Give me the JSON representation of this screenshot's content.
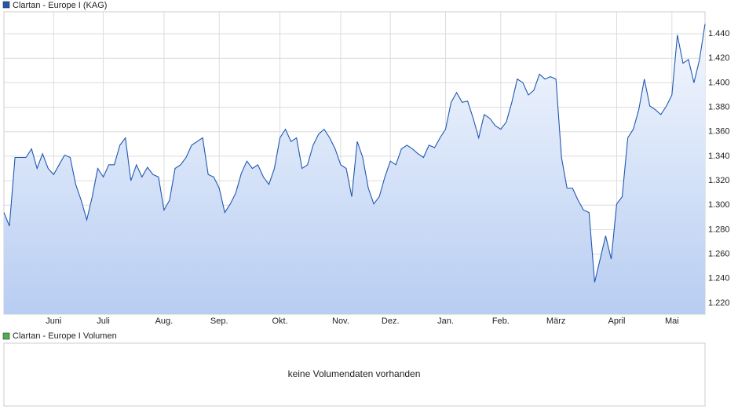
{
  "chart_data": [
    {
      "type": "line",
      "series": [
        {
          "name": "Clartan - Europe I (KAG)",
          "color": "#1f58b0",
          "values": [
            1.294,
            1.283,
            1.339,
            1.339,
            1.339,
            1.346,
            1.33,
            1.342,
            1.33,
            1.325,
            1.333,
            1.341,
            1.339,
            1.317,
            1.304,
            1.288,
            1.307,
            1.33,
            1.323,
            1.333,
            1.333,
            1.349,
            1.355,
            1.32,
            1.333,
            1.323,
            1.331,
            1.325,
            1.323,
            1.296,
            1.304,
            1.33,
            1.333,
            1.339,
            1.349,
            1.352,
            1.355,
            1.325,
            1.323,
            1.314,
            1.294,
            1.301,
            1.31,
            1.326,
            1.336,
            1.33,
            1.333,
            1.323,
            1.317,
            1.33,
            1.355,
            1.362,
            1.352,
            1.355,
            1.33,
            1.333,
            1.349,
            1.358,
            1.362,
            1.355,
            1.346,
            1.333,
            1.33,
            1.307,
            1.352,
            1.339,
            1.314,
            1.301,
            1.307,
            1.323,
            1.336,
            1.333,
            1.346,
            1.349,
            1.346,
            1.342,
            1.339,
            1.349,
            1.347,
            1.355,
            1.362,
            1.384,
            1.392,
            1.384,
            1.385,
            1.371,
            1.355,
            1.374,
            1.371,
            1.365,
            1.362,
            1.368,
            1.384,
            1.403,
            1.4,
            1.39,
            1.394,
            1.407,
            1.403,
            1.405,
            1.403,
            1.339,
            1.314,
            1.314,
            1.304,
            1.296,
            1.294,
            1.237,
            1.256,
            1.275,
            1.256,
            1.301,
            1.307,
            1.355,
            1.362,
            1.378,
            1.403,
            1.381,
            1.378,
            1.374,
            1.381,
            1.39,
            1.439,
            1.416,
            1.419,
            1.4,
            1.419,
            1.448
          ]
        }
      ],
      "xlim": [
        0,
        127
      ],
      "xticks": [
        {
          "value": 9,
          "label": "Juni"
        },
        {
          "value": 18,
          "label": "Juli"
        },
        {
          "value": 29,
          "label": "Aug."
        },
        {
          "value": 39,
          "label": "Sep."
        },
        {
          "value": 50,
          "label": "Okt."
        },
        {
          "value": 61,
          "label": "Nov."
        },
        {
          "value": 70,
          "label": "Dez."
        },
        {
          "value": 80,
          "label": "Jan."
        },
        {
          "value": 90,
          "label": "Feb."
        },
        {
          "value": 100,
          "label": "März"
        },
        {
          "value": 111,
          "label": "April"
        },
        {
          "value": 121,
          "label": "Mai"
        }
      ],
      "ylim": [
        1.211,
        1.458
      ],
      "yticks": [
        {
          "value": 1.22,
          "label": "1.220"
        },
        {
          "value": 1.24,
          "label": "1.240"
        },
        {
          "value": 1.26,
          "label": "1.260"
        },
        {
          "value": 1.28,
          "label": "1.280"
        },
        {
          "value": 1.3,
          "label": "1.300"
        },
        {
          "value": 1.32,
          "label": "1.320"
        },
        {
          "value": 1.34,
          "label": "1.340"
        },
        {
          "value": 1.36,
          "label": "1.360"
        },
        {
          "value": 1.38,
          "label": "1.380"
        },
        {
          "value": 1.4,
          "label": "1.400"
        },
        {
          "value": 1.42,
          "label": "1.420"
        },
        {
          "value": 1.44,
          "label": "1.440"
        }
      ],
      "grid": true
    },
    {
      "type": "bar",
      "title": "Clartan - Europe I Volumen",
      "color": "#4caf50",
      "message": "keine Volumendaten vorhanden"
    }
  ]
}
